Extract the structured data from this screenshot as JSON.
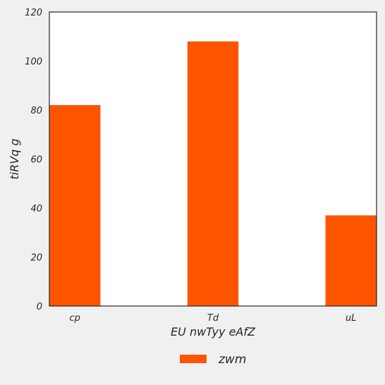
{
  "chart_data": {
    "type": "bar",
    "categories": [
      "cp",
      "Td",
      "uL"
    ],
    "series": [
      {
        "name": "zwm",
        "values": [
          82,
          108,
          37
        ],
        "color": "#ff5500"
      }
    ],
    "xlabel": "EU nwTyy eAfZ",
    "ylabel": "tiRVq g",
    "ylim": [
      0,
      120
    ],
    "yticks": [
      0,
      20,
      40,
      60,
      80,
      100,
      120
    ],
    "grid": false,
    "legend_position": "bottom-center",
    "background": "#f0f0f0",
    "plot_background": "#ffffff"
  }
}
